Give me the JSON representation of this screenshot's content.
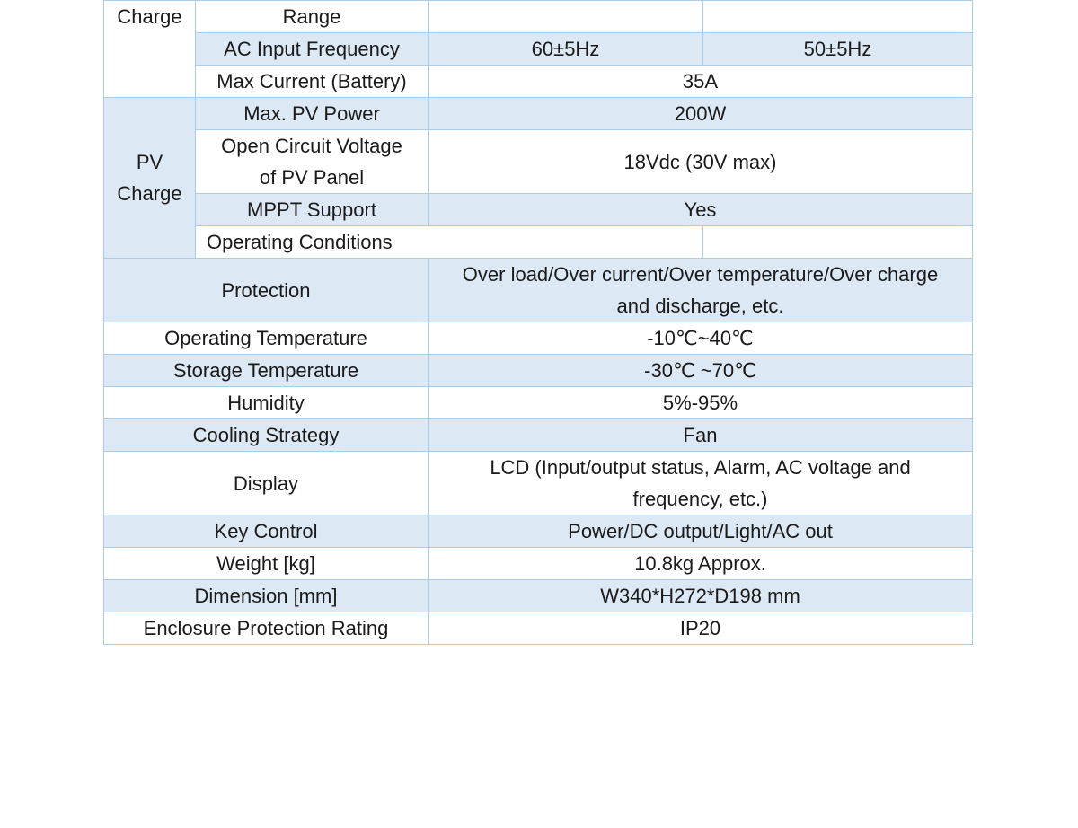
{
  "rows": {
    "range": {
      "group": "Charge",
      "label": "Range",
      "col1": "",
      "col2": ""
    },
    "ac_freq": {
      "label": "AC Input Frequency",
      "col1": "60±5Hz",
      "col2": "50±5Hz"
    },
    "max_current": {
      "label": "Max Current (Battery)",
      "value": "35A"
    },
    "pv_group": {
      "line1": "PV",
      "line2": "Charge"
    },
    "max_pv": {
      "label": "Max. PV Power",
      "value": "200W"
    },
    "ocv": {
      "label_line1": "Open Circuit Voltage",
      "label_line2": "of PV Panel",
      "value": "18Vdc (30V max)"
    },
    "mppt": {
      "label": "MPPT Support",
      "value": "Yes"
    },
    "operating_conditions": {
      "label": "Operating Conditions",
      "value": ""
    },
    "protection": {
      "label": "Protection",
      "value_line1": "Over load/Over current/Over temperature/Over charge",
      "value_line2": "and discharge, etc."
    },
    "op_temp": {
      "label": "Operating Temperature",
      "value": "-10℃~40℃"
    },
    "storage_temp": {
      "label": "Storage Temperature",
      "value": "-30℃ ~70℃"
    },
    "humidity": {
      "label": "Humidity",
      "value": "5%-95%"
    },
    "cooling": {
      "label": "Cooling Strategy",
      "value": "Fan"
    },
    "display": {
      "label": "Display",
      "value_line1": "LCD (Input/output status, Alarm, AC voltage and",
      "value_line2": "frequency, etc.)"
    },
    "key_control": {
      "label": "Key Control",
      "value": "Power/DC output/Light/AC out"
    },
    "weight": {
      "label": "Weight [kg]",
      "value": "10.8kg Approx."
    },
    "dimension": {
      "label": "Dimension [mm]",
      "value": "W340*H272*D198 mm"
    },
    "enclosure": {
      "label": "Enclosure Protection Rating",
      "value": "IP20"
    }
  }
}
